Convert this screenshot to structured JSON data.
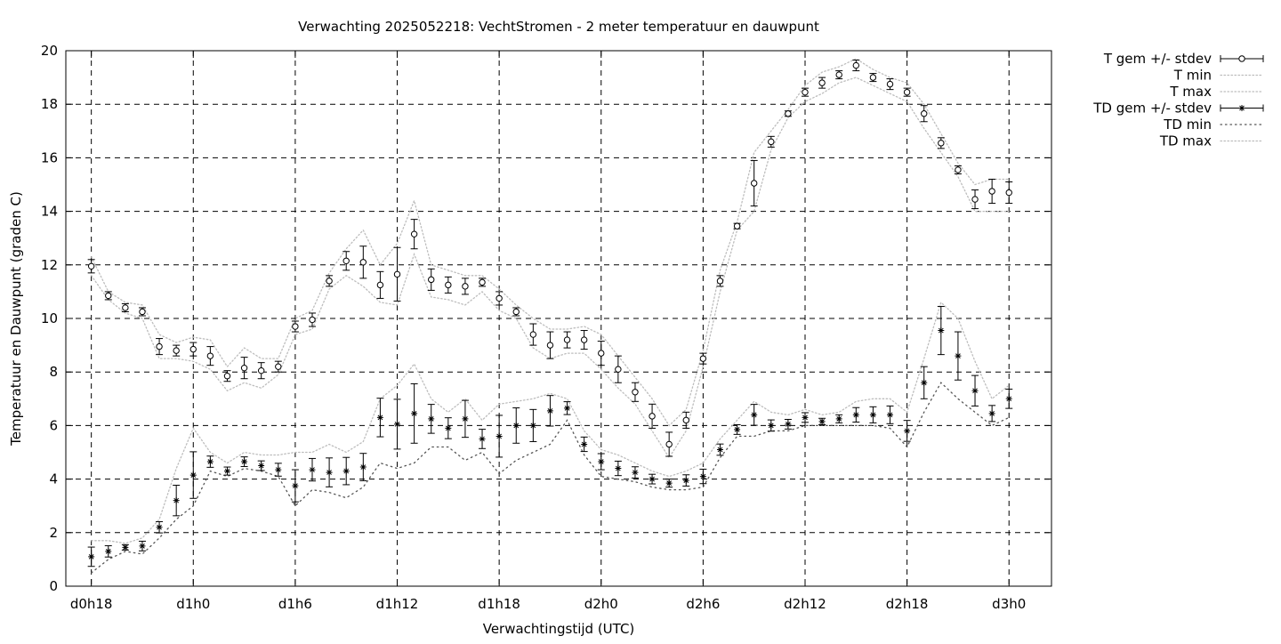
{
  "chart_data": {
    "type": "line",
    "title": "Verwachting 2025052218: VechtStromen - 2 meter temperatuur en dauwpunt",
    "xlabel": "Verwachtingstijd (UTC)",
    "ylabel": "Temperatuur en Dauwpunt (graden C)",
    "xlim": [
      -1.5,
      56.5
    ],
    "ylim": [
      0,
      20
    ],
    "grid": true,
    "legend_position": "outside-top-right",
    "x_ticks": [
      {
        "x": 0,
        "label": "d0h18"
      },
      {
        "x": 6,
        "label": "d1h0"
      },
      {
        "x": 12,
        "label": "d1h6"
      },
      {
        "x": 18,
        "label": "d1h12"
      },
      {
        "x": 24,
        "label": "d1h18"
      },
      {
        "x": 30,
        "label": "d2h0"
      },
      {
        "x": 36,
        "label": "d2h6"
      },
      {
        "x": 42,
        "label": "d2h12"
      },
      {
        "x": 48,
        "label": "d2h18"
      },
      {
        "x": 54,
        "label": "d3h0"
      }
    ],
    "y_ticks": [
      {
        "y": 0,
        "label": "0"
      },
      {
        "y": 2,
        "label": "2"
      },
      {
        "y": 4,
        "label": "4"
      },
      {
        "y": 6,
        "label": "6"
      },
      {
        "y": 8,
        "label": "8"
      },
      {
        "y": 10,
        "label": "10"
      },
      {
        "y": 12,
        "label": "12"
      },
      {
        "y": 14,
        "label": "14"
      },
      {
        "y": 16,
        "label": "16"
      },
      {
        "y": 18,
        "label": "18"
      },
      {
        "y": 20,
        "label": "20"
      }
    ],
    "x": [
      0,
      1,
      2,
      3,
      4,
      5,
      6,
      7,
      8,
      9,
      10,
      11,
      12,
      13,
      14,
      15,
      16,
      17,
      18,
      19,
      20,
      21,
      22,
      23,
      24,
      25,
      26,
      27,
      28,
      29,
      30,
      31,
      32,
      33,
      34,
      35,
      36,
      37,
      38,
      39,
      40,
      41,
      42,
      43,
      44,
      45,
      46,
      47,
      48,
      49,
      50,
      51,
      52,
      53,
      54
    ],
    "series": [
      {
        "name": "T gem +/- stdev",
        "marker": "circle",
        "values": [
          11.95,
          10.85,
          10.4,
          10.25,
          8.95,
          8.8,
          8.85,
          8.6,
          7.85,
          8.15,
          8.05,
          8.2,
          9.7,
          9.95,
          11.4,
          12.15,
          12.1,
          11.25,
          11.65,
          13.15,
          11.45,
          11.25,
          11.2,
          11.35,
          10.75,
          10.25,
          9.4,
          9.0,
          9.2,
          9.2,
          8.7,
          8.1,
          7.25,
          6.35,
          5.3,
          6.2,
          8.5,
          11.4,
          13.45,
          15.05,
          16.6,
          17.65,
          18.45,
          18.8,
          19.1,
          19.45,
          19.0,
          18.75,
          18.45,
          17.65,
          16.55,
          15.55,
          14.45,
          14.75,
          14.7
        ],
        "stdev": [
          0.25,
          0.15,
          0.15,
          0.15,
          0.3,
          0.2,
          0.25,
          0.35,
          0.2,
          0.4,
          0.3,
          0.2,
          0.2,
          0.25,
          0.2,
          0.35,
          0.6,
          0.5,
          1.0,
          0.55,
          0.4,
          0.3,
          0.3,
          0.15,
          0.25,
          0.15,
          0.4,
          0.5,
          0.3,
          0.35,
          0.45,
          0.5,
          0.35,
          0.45,
          0.45,
          0.3,
          0.2,
          0.2,
          0.1,
          0.85,
          0.2,
          0.1,
          0.15,
          0.2,
          0.15,
          0.2,
          0.15,
          0.2,
          0.15,
          0.3,
          0.2,
          0.15,
          0.35,
          0.45,
          0.4
        ]
      },
      {
        "name": "T min",
        "values": [
          11.6,
          10.7,
          10.2,
          10.0,
          8.5,
          8.5,
          8.4,
          8.1,
          7.3,
          7.6,
          7.4,
          7.9,
          9.4,
          9.6,
          11.1,
          11.6,
          11.2,
          10.6,
          10.5,
          12.4,
          10.8,
          10.7,
          10.5,
          11.0,
          10.3,
          10.0,
          8.9,
          8.5,
          8.7,
          8.7,
          8.1,
          7.4,
          6.8,
          5.8,
          4.8,
          5.8,
          8.2,
          11.0,
          13.3,
          14.0,
          16.3,
          17.5,
          18.1,
          18.4,
          18.8,
          19.0,
          18.7,
          18.4,
          18.1,
          17.1,
          16.2,
          15.3,
          14.0,
          14.0,
          14.0
        ]
      },
      {
        "name": "T max",
        "values": [
          12.3,
          11.0,
          10.6,
          10.5,
          9.4,
          9.1,
          9.3,
          9.2,
          8.2,
          8.9,
          8.5,
          8.5,
          10.0,
          10.3,
          11.7,
          12.6,
          13.3,
          12.0,
          12.8,
          14.4,
          12.0,
          11.8,
          11.6,
          11.6,
          11.1,
          10.5,
          10.0,
          9.6,
          9.6,
          9.7,
          9.4,
          8.6,
          7.8,
          7.0,
          6.0,
          6.6,
          8.8,
          11.8,
          13.6,
          16.2,
          17.0,
          17.8,
          18.7,
          19.2,
          19.4,
          19.7,
          19.3,
          19.0,
          18.8,
          18.0,
          16.9,
          15.8,
          15.0,
          15.2,
          15.2
        ]
      },
      {
        "name": "TD gem +/- stdev",
        "marker": "star",
        "values": [
          1.1,
          1.3,
          1.45,
          1.5,
          2.2,
          3.2,
          4.15,
          4.65,
          4.3,
          4.65,
          4.5,
          4.35,
          3.75,
          4.35,
          4.25,
          4.3,
          4.45,
          6.3,
          6.05,
          6.45,
          6.25,
          5.9,
          6.25,
          5.5,
          5.6,
          6.0,
          6.0,
          6.55,
          6.65,
          5.3,
          4.65,
          4.4,
          4.25,
          4.0,
          3.85,
          3.95,
          4.1,
          5.1,
          5.85,
          6.4,
          6.0,
          6.05,
          6.3,
          6.15,
          6.25,
          6.4,
          6.4,
          6.4,
          5.8,
          7.6,
          9.55,
          8.6,
          7.3,
          6.45,
          7.0
        ]
      },
      {
        "name": "TD min",
        "values": [
          0.5,
          1.0,
          1.3,
          1.2,
          1.8,
          2.5,
          3.0,
          4.3,
          4.1,
          4.4,
          4.3,
          4.1,
          3.0,
          3.6,
          3.5,
          3.3,
          3.7,
          4.6,
          4.4,
          4.6,
          5.2,
          5.2,
          4.7,
          5.0,
          4.2,
          4.7,
          5.0,
          5.3,
          6.2,
          4.9,
          4.1,
          4.0,
          3.9,
          3.7,
          3.6,
          3.6,
          3.7,
          4.8,
          5.6,
          5.6,
          5.8,
          5.8,
          6.0,
          6.0,
          6.0,
          6.0,
          6.0,
          5.9,
          5.2,
          6.5,
          7.6,
          7.0,
          6.5,
          6.0,
          6.3
        ]
      },
      {
        "name": "TD max",
        "values": [
          1.7,
          1.7,
          1.6,
          1.8,
          2.5,
          4.4,
          5.9,
          5.0,
          4.6,
          5.0,
          4.9,
          4.9,
          5.0,
          5.0,
          5.3,
          5.0,
          5.4,
          7.0,
          7.5,
          8.3,
          7.0,
          6.5,
          7.0,
          6.2,
          6.8,
          6.9,
          7.0,
          7.2,
          7.0,
          5.8,
          5.1,
          4.9,
          4.6,
          4.3,
          4.1,
          4.3,
          4.6,
          5.5,
          6.2,
          6.9,
          6.5,
          6.4,
          6.6,
          6.4,
          6.5,
          6.9,
          7.0,
          7.0,
          6.5,
          8.5,
          10.6,
          10.0,
          8.4,
          7.0,
          7.5
        ]
      }
    ]
  }
}
